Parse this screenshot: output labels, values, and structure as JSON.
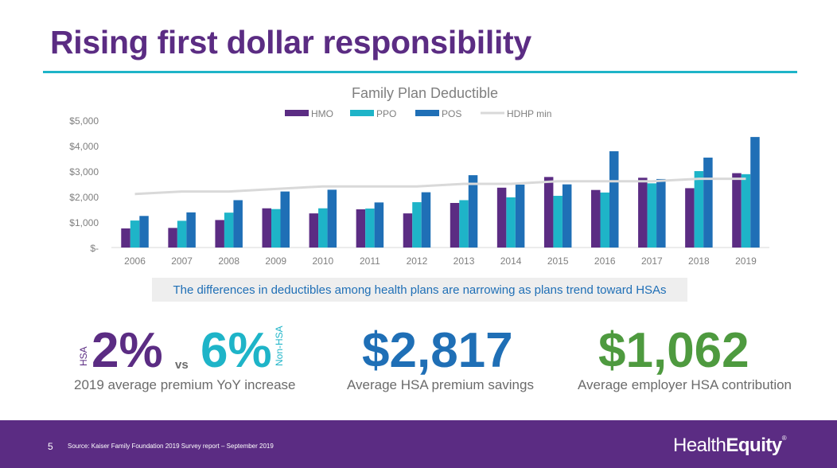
{
  "page": {
    "title": "Rising first dollar responsibility",
    "callout": "The differences in deductibles among health plans are narrowing as plans trend toward HSAs"
  },
  "stats": {
    "hsa_label": "HSA",
    "hsa_value": "2%",
    "vs": "vs",
    "nonhsa_value": "6%",
    "nonhsa_label": "Non-HSA",
    "premium_caption": "2019 average premium YoY increase",
    "savings_value": "$2,817",
    "savings_caption": "Average HSA premium savings",
    "employer_value": "$1,062",
    "employer_caption": "Average employer HSA contribution"
  },
  "footer": {
    "page_number": "5",
    "source": "Source: Kaiser Family Foundation 2019 Survey report – September 2019",
    "logo_regular": "Health",
    "logo_bold": "Equity",
    "logo_mark": "®"
  },
  "colors": {
    "brand_purple": "#5b2c83",
    "accent_teal": "#1eb4c8",
    "callout_blue": "#1f6fb6",
    "savings_blue": "#1f6fb6",
    "employer_green": "#4e9a3f"
  },
  "chart_data": {
    "type": "bar",
    "title": "Family Plan Deductible",
    "categories": [
      "2006",
      "2007",
      "2008",
      "2009",
      "2010",
      "2011",
      "2012",
      "2013",
      "2014",
      "2015",
      "2016",
      "2017",
      "2018",
      "2019"
    ],
    "y_tick_labels": [
      "$-",
      "$1,000",
      "$2,000",
      "$3,000",
      "$4,000",
      "$5,000"
    ],
    "y_ticks": [
      0,
      1000,
      2000,
      3000,
      4000,
      5000
    ],
    "ylim": [
      0,
      5000
    ],
    "grid": false,
    "legend_position": "top",
    "series": [
      {
        "name": "HMO",
        "type": "bar",
        "color": "#5b2c83",
        "values": [
          750,
          770,
          1080,
          1540,
          1340,
          1500,
          1340,
          1750,
          2350,
          2770,
          2260,
          2740,
          2330,
          2920
        ]
      },
      {
        "name": "PPO",
        "type": "bar",
        "color": "#1eb4c8",
        "values": [
          1060,
          1050,
          1370,
          1510,
          1540,
          1530,
          1780,
          1860,
          1970,
          2030,
          2160,
          2520,
          3000,
          2880
        ]
      },
      {
        "name": "POS",
        "type": "bar",
        "color": "#1f6fb6",
        "values": [
          1240,
          1380,
          1860,
          2200,
          2270,
          1770,
          2170,
          2840,
          2470,
          2480,
          3780,
          2690,
          3530,
          4340
        ]
      },
      {
        "name": "HDHP min",
        "type": "line",
        "color": "#d9d9d9",
        "values": [
          2100,
          2200,
          2200,
          2300,
          2400,
          2400,
          2400,
          2500,
          2500,
          2600,
          2600,
          2600,
          2700,
          2700
        ]
      }
    ]
  }
}
